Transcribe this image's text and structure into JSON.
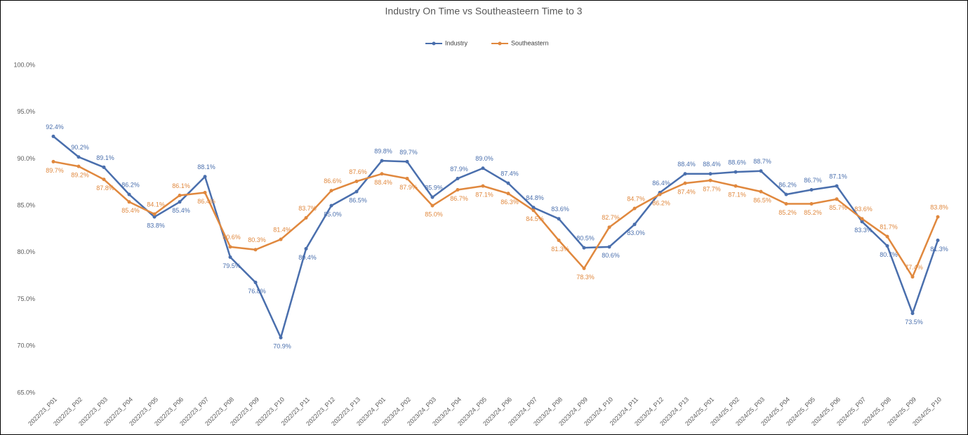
{
  "chart_data": {
    "type": "line",
    "title": "Industry On Time vs Southeasteern Time to 3",
    "categories": [
      "2022/23_P01",
      "2022/23_P02",
      "2022/23_P03",
      "2022/23_P04",
      "2022/23_P05",
      "2022/23_P06",
      "2022/23_P07",
      "2022/23_P08",
      "2022/23_P09",
      "2022/23_P10",
      "2022/23_P11",
      "2022/23_P12",
      "2022/23_P13",
      "2023/24_P01",
      "2023/24_P02",
      "2023/24_P03",
      "2023/24_P04",
      "2023/24_P05",
      "2023/24_P06",
      "2023/24_P07",
      "2023/24_P08",
      "2023/24_P09",
      "2023/24_P10",
      "2023/24_P11",
      "2023/24_P12",
      "2023/24_P13",
      "2024/25_P01",
      "2024/25_P02",
      "2024/25_P03",
      "2024/25_P04",
      "2024/25_P05",
      "2024/25_P06",
      "2024/25_P07",
      "2024/25_P08",
      "2024/25_P09",
      "2024/25_P10"
    ],
    "series": [
      {
        "name": "Industry",
        "color": "#4a6fad",
        "values": [
          92.4,
          90.2,
          89.1,
          86.2,
          83.8,
          85.4,
          88.1,
          79.5,
          76.8,
          70.9,
          80.4,
          85.0,
          86.5,
          89.8,
          89.7,
          85.9,
          87.9,
          89.0,
          87.4,
          84.8,
          83.6,
          80.5,
          80.6,
          83.0,
          86.4,
          88.4,
          88.4,
          88.6,
          88.7,
          86.2,
          86.7,
          87.1,
          83.3,
          80.7,
          73.5,
          81.3
        ],
        "value_labels": [
          "92.4%",
          "90.2%",
          "89.1%",
          "86.2%",
          "83.8%",
          "85.4%",
          "88.1%",
          "79.5%",
          "76.8%",
          "70.9%",
          "80.4%",
          "85.0%",
          "86.5%",
          "89.8%",
          "89.7%",
          "85.9%",
          "87.9%",
          "89.0%",
          "87.4%",
          "84.8%",
          "83.6%",
          "80.5%",
          "80.6%",
          "83.0%",
          "86.4%",
          "88.4%",
          "88.4%",
          "88.6%",
          "88.7%",
          "86.2%",
          "86.7%",
          "87.1%",
          "83.3%",
          "80.7%",
          "73.5%",
          "81.3%"
        ]
      },
      {
        "name": "Southeastern",
        "color": "#e0883e",
        "values": [
          89.7,
          89.2,
          87.8,
          85.4,
          84.1,
          86.1,
          86.4,
          80.6,
          80.3,
          81.4,
          83.7,
          86.6,
          87.6,
          88.4,
          87.9,
          85.0,
          86.7,
          87.1,
          86.3,
          84.5,
          81.3,
          78.3,
          82.7,
          84.7,
          86.2,
          87.4,
          87.7,
          87.1,
          86.5,
          85.2,
          85.2,
          85.7,
          83.6,
          81.7,
          77.4,
          83.8
        ],
        "value_labels": [
          "89.7%",
          "89.2%",
          "87.8%",
          "85.4%",
          "84.1%",
          "86.1%",
          "86.4%",
          "80.6%",
          "80.3%",
          "81.4%",
          "83.7%",
          "86.6%",
          "87.6%",
          "88.4%",
          "87.9%",
          "85.0%",
          "86.7%",
          "87.1%",
          "86.3%",
          "84.5%",
          "81.3%",
          "78.3%",
          "82.7%",
          "84.7%",
          "86.2%",
          "87.4%",
          "87.7%",
          "87.1%",
          "86.5%",
          "85.2%",
          "85.2%",
          "85.7%",
          "83.6%",
          "81.7%",
          "77.4%",
          "83.8%"
        ]
      }
    ],
    "ylim": [
      65,
      100
    ],
    "yticks": [
      {
        "value": 65,
        "label": "65.0%"
      },
      {
        "value": 70,
        "label": "70.0%"
      },
      {
        "value": 75,
        "label": "75.0%"
      },
      {
        "value": 80,
        "label": "80.0%"
      },
      {
        "value": 85,
        "label": "85.0%"
      },
      {
        "value": 90,
        "label": "90.0%"
      },
      {
        "value": 95,
        "label": "95.0%"
      },
      {
        "value": 100,
        "label": "100.0%"
      }
    ],
    "grid": false,
    "legend": "top"
  }
}
